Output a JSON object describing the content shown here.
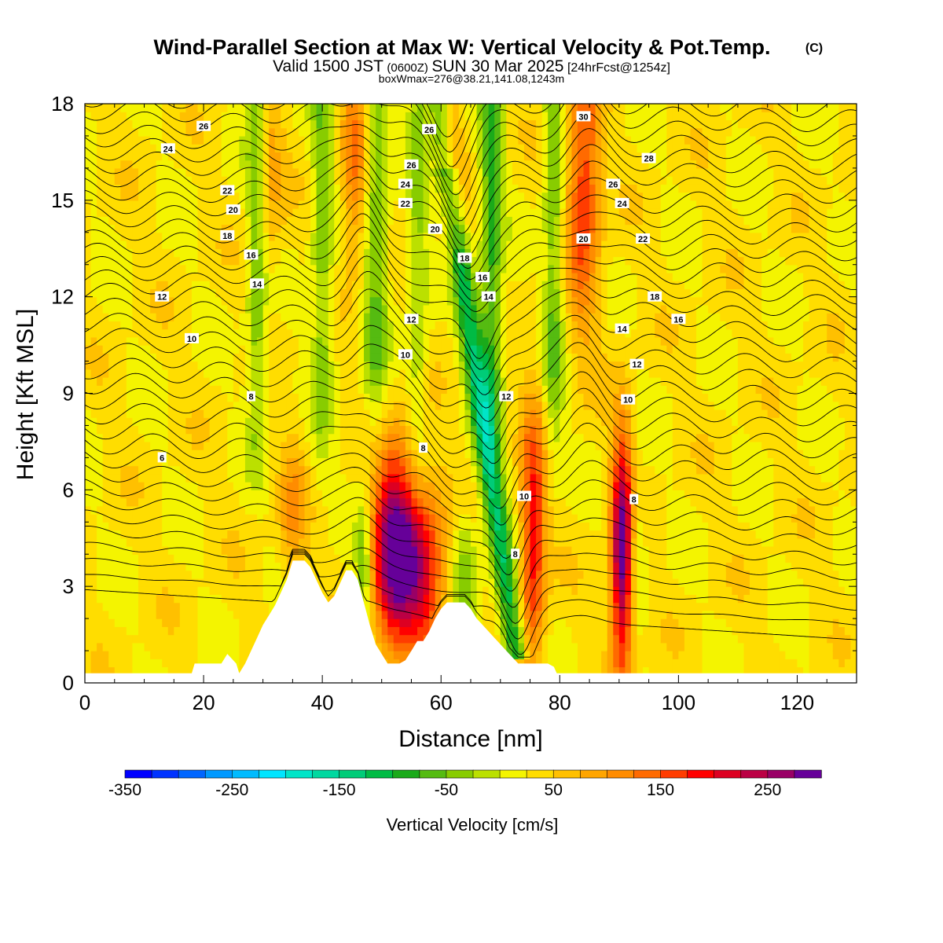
{
  "title": {
    "main": "Wind-Parallel Section at Max W: Vertical Velocity & Pot.Temp.",
    "copyright": "(C)",
    "valid_prefix": "Valid 1500 JST",
    "valid_z": "(0600Z)",
    "valid_date": "SUN 30 Mar 2025",
    "valid_fcst": "[24hrFcst@1254z]",
    "boxw": "boxWmax=276@38.21,141.08,1243m"
  },
  "chart_data": {
    "type": "heatmap",
    "xlabel": "Distance [nm]",
    "ylabel": "Height [Kft MSL]",
    "xlim": [
      0,
      130
    ],
    "ylim": [
      0,
      18
    ],
    "x_ticks": [
      0,
      20,
      40,
      60,
      80,
      100,
      120
    ],
    "y_ticks": [
      0,
      3,
      6,
      9,
      12,
      15,
      18
    ],
    "colorbar": {
      "label": "Vertical Velocity [cm/s]",
      "range": [
        -350,
        275
      ],
      "step": 25,
      "ticks": [
        -350,
        -250,
        -150,
        -50,
        50,
        150,
        250
      ],
      "colors": [
        "#0000ff",
        "#0033ff",
        "#0066ff",
        "#0099ff",
        "#00bbff",
        "#00e5ff",
        "#00e5c8",
        "#00d8a0",
        "#00cc78",
        "#00bb44",
        "#1aaa1a",
        "#55bb11",
        "#88cc00",
        "#bbe000",
        "#f4f400",
        "#ffdd00",
        "#ffc000",
        "#ffa500",
        "#ff8c00",
        "#ff6a00",
        "#ff3c00",
        "#ff0000",
        "#dd0022",
        "#bb0044",
        "#990066",
        "#660099"
      ]
    },
    "w_field_features": [
      {
        "x": 52,
        "z": 4.2,
        "w": 260,
        "sx": 2.6,
        "sz": 2.2
      },
      {
        "x": 57,
        "z": 3.4,
        "w": 160,
        "sx": 2.8,
        "sz": 2.0
      },
      {
        "x": 90.5,
        "z": 4.0,
        "w": 275,
        "sx": 1.3,
        "sz": 2.6
      },
      {
        "x": 75.5,
        "z": 4.5,
        "w": 170,
        "sx": 1.5,
        "sz": 2.8
      },
      {
        "x": 35,
        "z": 5.2,
        "w": 70,
        "sx": 1.6,
        "sz": 1.6
      },
      {
        "x": 45.5,
        "z": 16.0,
        "w": 100,
        "sx": 1.6,
        "sz": 2.2
      },
      {
        "x": 84,
        "z": 15.5,
        "w": 150,
        "sx": 2.0,
        "sz": 3.0
      },
      {
        "x": 62,
        "z": 15.5,
        "w": 70,
        "sx": 1.6,
        "sz": 2.2
      },
      {
        "x": 31,
        "z": 16.0,
        "w": 60,
        "sx": 1.6,
        "sz": 2.5
      }
    ],
    "terrain_profile": {
      "x": [
        0,
        18,
        18.5,
        23,
        24,
        25.5,
        26,
        27,
        28,
        29,
        30,
        31,
        32,
        33,
        34,
        35,
        37,
        38,
        39,
        40,
        41,
        42,
        43,
        44,
        45,
        46,
        47,
        48,
        49,
        50,
        51,
        52,
        53,
        54,
        55,
        56,
        57,
        58,
        59,
        60,
        61,
        62,
        63,
        64,
        65,
        66,
        67,
        68,
        69,
        70,
        71,
        72,
        73,
        78,
        79,
        79.5,
        130
      ],
      "z": [
        0.3,
        0.3,
        0.6,
        0.6,
        0.9,
        0.6,
        0.3,
        0.6,
        1.0,
        1.4,
        1.8,
        2.1,
        2.4,
        2.8,
        3.2,
        3.8,
        3.8,
        3.6,
        3.2,
        2.8,
        2.5,
        2.7,
        3.1,
        3.5,
        3.5,
        3.2,
        2.5,
        1.8,
        1.2,
        0.9,
        0.6,
        0.6,
        0.6,
        0.7,
        1.0,
        1.3,
        1.3,
        1.6,
        2.0,
        2.3,
        2.5,
        2.5,
        2.5,
        2.5,
        2.3,
        2.0,
        1.8,
        1.6,
        1.4,
        1.2,
        1.0,
        0.8,
        0.6,
        0.6,
        0.5,
        0.3,
        0.3
      ]
    },
    "theta_contours": {
      "levels": [
        6,
        8,
        10,
        12,
        14,
        16,
        18,
        20,
        22,
        24,
        26,
        28,
        30
      ],
      "labels_shown": [
        {
          "text": "6",
          "x": 13,
          "z": 7.0
        },
        {
          "text": "8",
          "x": 28,
          "z": 8.9
        },
        {
          "text": "8",
          "x": 57,
          "z": 7.3
        },
        {
          "text": "8",
          "x": 72.5,
          "z": 4.0
        },
        {
          "text": "8",
          "x": 92.5,
          "z": 5.7
        },
        {
          "text": "10",
          "x": 18,
          "z": 10.7
        },
        {
          "text": "10",
          "x": 54,
          "z": 10.2
        },
        {
          "text": "10",
          "x": 74,
          "z": 5.8
        },
        {
          "text": "10",
          "x": 91.5,
          "z": 8.8
        },
        {
          "text": "12",
          "x": 13,
          "z": 12.0
        },
        {
          "text": "12",
          "x": 55,
          "z": 11.3
        },
        {
          "text": "12",
          "x": 71,
          "z": 8.9
        },
        {
          "text": "12",
          "x": 93,
          "z": 9.9
        },
        {
          "text": "14",
          "x": 29,
          "z": 12.4
        },
        {
          "text": "14",
          "x": 68,
          "z": 12.0
        },
        {
          "text": "14",
          "x": 90.5,
          "z": 11.0
        },
        {
          "text": "16",
          "x": 28,
          "z": 13.3
        },
        {
          "text": "16",
          "x": 67,
          "z": 12.6
        },
        {
          "text": "16",
          "x": 100,
          "z": 11.3
        },
        {
          "text": "18",
          "x": 24,
          "z": 13.9
        },
        {
          "text": "18",
          "x": 64,
          "z": 13.2
        },
        {
          "text": "18",
          "x": 96,
          "z": 12.0
        },
        {
          "text": "20",
          "x": 25,
          "z": 14.7
        },
        {
          "text": "20",
          "x": 59,
          "z": 14.1
        },
        {
          "text": "20",
          "x": 84,
          "z": 13.8
        },
        {
          "text": "22",
          "x": 24,
          "z": 15.3
        },
        {
          "text": "22",
          "x": 54,
          "z": 14.9
        },
        {
          "text": "22",
          "x": 94,
          "z": 13.8
        },
        {
          "text": "24",
          "x": 14,
          "z": 16.6
        },
        {
          "text": "24",
          "x": 54,
          "z": 15.5
        },
        {
          "text": "24",
          "x": 90.5,
          "z": 14.9
        },
        {
          "text": "26",
          "x": 20,
          "z": 17.3
        },
        {
          "text": "26",
          "x": 55,
          "z": 16.1
        },
        {
          "text": "26",
          "x": 89,
          "z": 15.5
        },
        {
          "text": "26",
          "x": 58,
          "z": 17.2
        },
        {
          "text": "28",
          "x": 95,
          "z": 16.3
        },
        {
          "text": "30",
          "x": 84,
          "z": 17.6
        }
      ]
    }
  }
}
